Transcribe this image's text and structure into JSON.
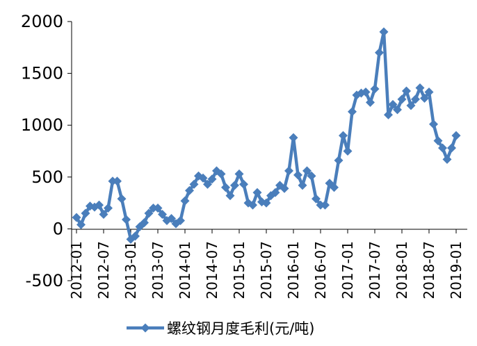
{
  "chart_data": {
    "type": "line",
    "title": "",
    "xlabel": "",
    "ylabel": "",
    "ylim": [
      -500,
      2000
    ],
    "yticks": [
      -500,
      0,
      500,
      1000,
      1500,
      2000
    ],
    "x_tick_labels": [
      "2012-01",
      "2012-07",
      "2013-01",
      "2013-07",
      "2014-01",
      "2014-07",
      "2015-01",
      "2015-07",
      "2016-01",
      "2016-07",
      "2017-01",
      "2017-07",
      "2018-01",
      "2018-07",
      "2019-01"
    ],
    "x_tick_interval_months": 6,
    "start_month": "2012-01",
    "grid": false,
    "legend_position": "bottom",
    "colors": {
      "series": "#4A7EBB",
      "axis": "#000000"
    },
    "series": [
      {
        "name": "螺纹钢月度毛利(元/吨)",
        "marker": "diamond",
        "values": [
          110,
          40,
          150,
          220,
          210,
          230,
          140,
          200,
          460,
          460,
          290,
          90,
          -100,
          -70,
          20,
          60,
          150,
          200,
          200,
          140,
          80,
          100,
          50,
          80,
          270,
          370,
          430,
          510,
          490,
          430,
          480,
          560,
          530,
          400,
          320,
          420,
          530,
          430,
          250,
          230,
          350,
          260,
          250,
          320,
          350,
          420,
          390,
          560,
          880,
          520,
          420,
          560,
          510,
          290,
          230,
          230,
          440,
          400,
          660,
          900,
          750,
          1130,
          1290,
          1310,
          1320,
          1220,
          1350,
          1700,
          1900,
          1100,
          1200,
          1150,
          1250,
          1330,
          1190,
          1250,
          1360,
          1260,
          1320,
          1010,
          850,
          780,
          670,
          780,
          900
        ]
      }
    ]
  }
}
